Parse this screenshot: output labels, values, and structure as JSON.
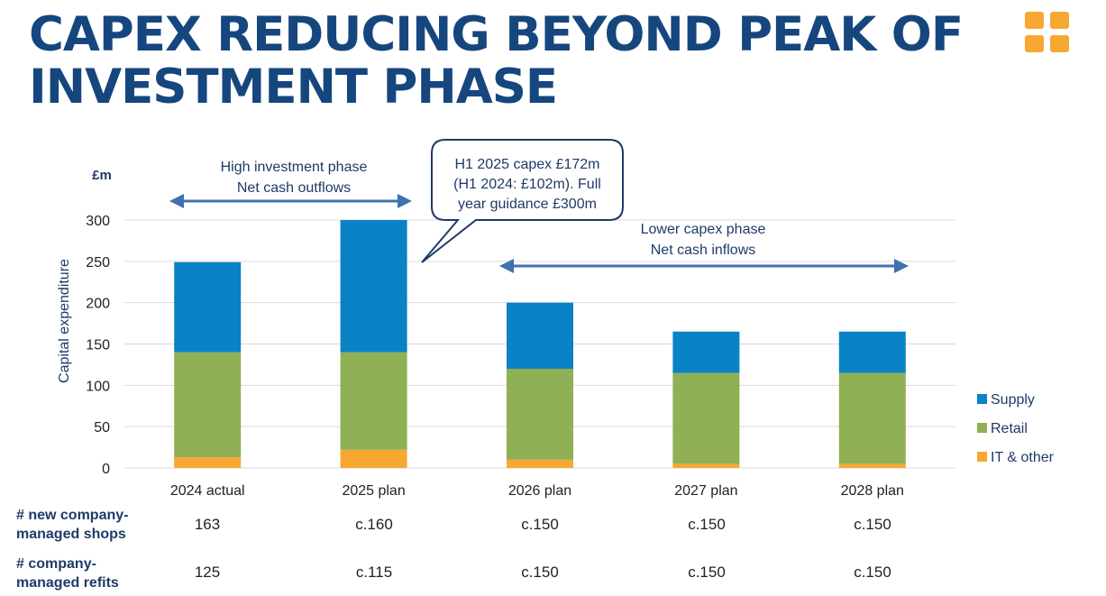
{
  "title": "CAPEX REDUCING BEYOND PEAK OF INVESTMENT PHASE",
  "colors": {
    "supply": "#0a82c6",
    "retail": "#8fb054",
    "it_other": "#f7a833",
    "title": "#16467e",
    "arrow": "#3f72ae",
    "logo": "#f7a833"
  },
  "annotations": {
    "high_phase_line1": "High investment phase",
    "high_phase_line2": "Net cash outflows",
    "lower_phase_line1": "Lower capex phase",
    "lower_phase_line2": "Net cash inflows",
    "callout_line1": "H1 2025 capex £172m",
    "callout_line2": "(H1 2024: £102m).  Full",
    "callout_line3": "year guidance £300m"
  },
  "chart_data": {
    "type": "bar",
    "stacked": true,
    "unit_label": "£m",
    "ylabel": "Capital expenditure",
    "ylim": [
      0,
      300
    ],
    "yticks": [
      0,
      50,
      100,
      150,
      200,
      250,
      300
    ],
    "grid": true,
    "legend_position": "right",
    "categories": [
      "2024 actual",
      "2025 plan",
      "2026 plan",
      "2027 plan",
      "2028 plan"
    ],
    "series": [
      {
        "name": "IT & other",
        "color": "#f7a833",
        "values": [
          13,
          22,
          10,
          5,
          5
        ]
      },
      {
        "name": "Retail",
        "color": "#8fb054",
        "values": [
          127,
          118,
          110,
          110,
          110
        ]
      },
      {
        "name": "Supply",
        "color": "#0a82c6",
        "values": [
          109,
          160,
          80,
          50,
          50
        ]
      }
    ],
    "legend_order": [
      "Supply",
      "Retail",
      "IT & other"
    ]
  },
  "table": {
    "rows": [
      {
        "label_line1": "# new company-",
        "label_line2": "managed shops",
        "values": [
          "163",
          "c.160",
          "c.150",
          "c.150",
          "c.150"
        ]
      },
      {
        "label_line1": "# company-",
        "label_line2": "managed refits",
        "values": [
          "125",
          "c.115",
          "c.150",
          "c.150",
          "c.150"
        ]
      }
    ]
  }
}
